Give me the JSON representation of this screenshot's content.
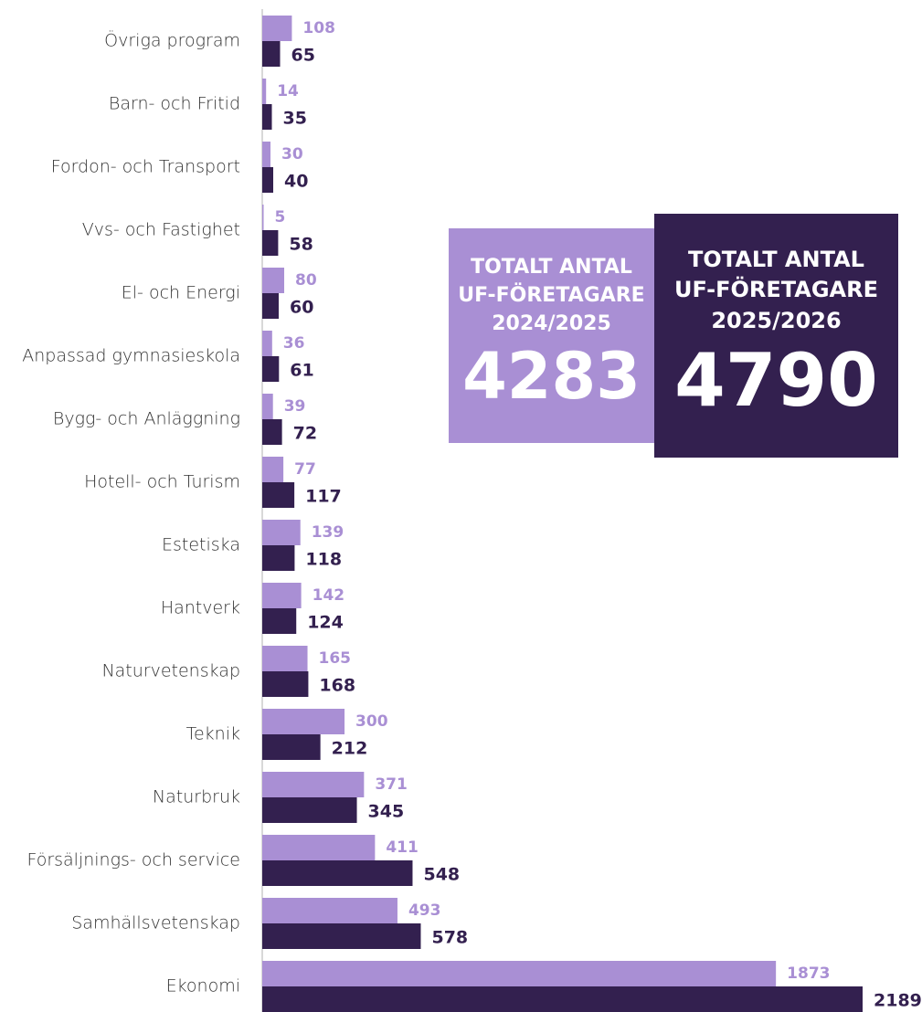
{
  "chart_data": {
    "type": "bar",
    "orientation": "horizontal",
    "categories": [
      "Övriga program",
      "Barn- och Fritid",
      "Fordon- och Transport",
      "Vvs- och Fastighet",
      "El- och Energi",
      "Anpassad gymnasieskola",
      "Bygg- och Anläggning",
      "Hotell- och Turism",
      "Estetiska",
      "Hantverk",
      "Naturvetenskap",
      "Teknik",
      "Naturbruk",
      "Försäljnings- och service",
      "Samhällsvetenskap",
      "Ekonomi"
    ],
    "series": [
      {
        "color": "#a98fd4",
        "values": [
          108,
          14,
          30,
          5,
          80,
          36,
          39,
          77,
          139,
          142,
          165,
          300,
          371,
          411,
          493,
          1873
        ]
      },
      {
        "color": "#33204f",
        "values": [
          65,
          35,
          40,
          58,
          60,
          61,
          72,
          117,
          118,
          124,
          168,
          212,
          345,
          548,
          578,
          2189
        ]
      }
    ],
    "annotations": [
      {
        "lines": [
          "TOTALT ANTAL",
          "UF-FÖRETAGARE",
          "2024/2025"
        ],
        "value": 4283,
        "color": "#a98fd4"
      },
      {
        "lines": [
          "TOTALT ANTAL",
          "UF-FÖRETAGARE",
          "2025/2026"
        ],
        "value": 4790,
        "color": "#33204f"
      }
    ]
  }
}
